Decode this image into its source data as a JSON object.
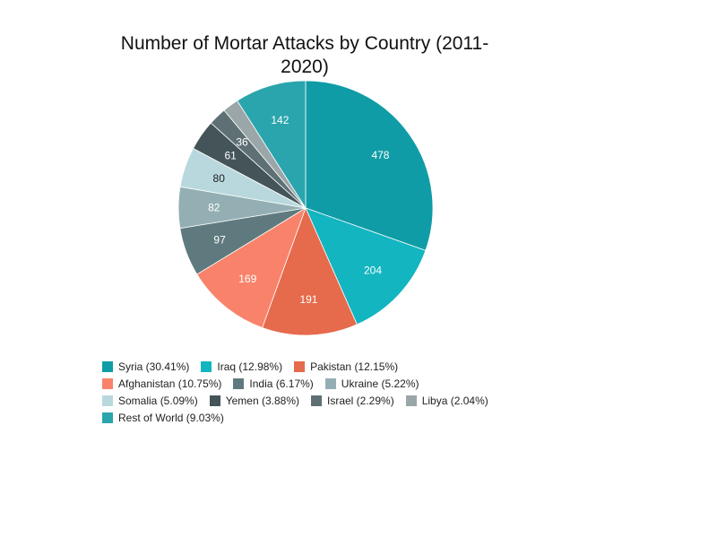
{
  "chart_data": {
    "type": "pie",
    "title": "Number of Mortar Attacks by Country (2011-2020)",
    "title_lines": [
      "Number of Mortar Attacks by Country (2011-",
      "2020)"
    ],
    "start_angle": "12 o'clock",
    "direction": "clockwise",
    "legend_position": "bottom",
    "slices": [
      {
        "label": "Syria",
        "value": 478,
        "percent": 30.41,
        "legend": "Syria (30.41%)",
        "color": "#109ca6",
        "label_color": "#ffffff"
      },
      {
        "label": "Iraq",
        "value": 204,
        "percent": 12.98,
        "legend": "Iraq (12.98%)",
        "color": "#12b5c0",
        "label_color": "#ffffff"
      },
      {
        "label": "Pakistan",
        "value": 191,
        "percent": 12.15,
        "legend": "Pakistan (12.15%)",
        "color": "#e66a4c",
        "label_color": "#ffffff"
      },
      {
        "label": "Afghanistan",
        "value": 169,
        "percent": 10.75,
        "legend": "Afghanistan (10.75%)",
        "color": "#f8836a",
        "label_color": "#ffffff"
      },
      {
        "label": "India",
        "value": 97,
        "percent": 6.17,
        "legend": "India (6.17%)",
        "color": "#5f7a7e",
        "label_color": "#ffffff"
      },
      {
        "label": "Ukraine",
        "value": 82,
        "percent": 5.22,
        "legend": "Ukraine (5.22%)",
        "color": "#93afb3",
        "label_color": "#ffffff"
      },
      {
        "label": "Somalia",
        "value": 80,
        "percent": 5.09,
        "legend": "Somalia (5.09%)",
        "color": "#b8d8de",
        "label_color": "#222222"
      },
      {
        "label": "Yemen",
        "value": 61,
        "percent": 3.88,
        "legend": "Yemen (3.88%)",
        "color": "#445459",
        "label_color": "#ffffff"
      },
      {
        "label": "Israel",
        "value": 36,
        "percent": 2.29,
        "legend": "Israel (2.29%)",
        "color": "#5f7074",
        "label_color": "#ffffff"
      },
      {
        "label": "Libya",
        "value": 32,
        "percent": 2.04,
        "legend": "Libya (2.04%)",
        "color": "#9aa6a8",
        "label_color": "#ffffff"
      },
      {
        "label": "Rest of World",
        "value": 142,
        "percent": 9.03,
        "legend": "Rest of World (9.03%)",
        "color": "#2ba5ad",
        "label_color": "#ffffff"
      }
    ],
    "data_labels_shown": [
      "478",
      "204",
      "191",
      "169",
      "97",
      "82",
      "80",
      "61",
      "36",
      "",
      "142"
    ],
    "legend_rows": [
      [
        0,
        1,
        2
      ],
      [
        3,
        4,
        5
      ],
      [
        6,
        7,
        8,
        9
      ],
      [
        10
      ]
    ]
  }
}
